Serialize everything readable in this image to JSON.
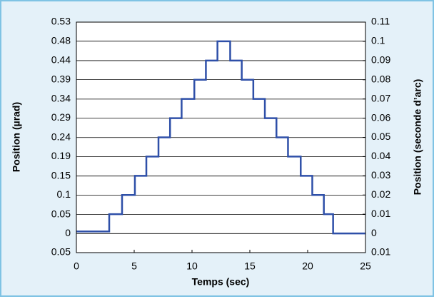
{
  "chart_data": {
    "type": "line",
    "xlabel": "Temps (sec)",
    "ylabel": "Position (µrad)",
    "y2label": "Position (seconde d’arc)",
    "xlim": [
      0,
      25
    ],
    "xticks": [
      0,
      5,
      10,
      15,
      20,
      25
    ],
    "ylim": [
      -0.048,
      0.533
    ],
    "yticks": [
      {
        "value": -0.048,
        "label": "0.05"
      },
      0,
      {
        "value": 0.048,
        "label": "0.05"
      },
      {
        "value": 0.097,
        "label": "0.1"
      },
      {
        "value": 0.145,
        "label": "0.15"
      },
      {
        "value": 0.194,
        "label": "0.19"
      },
      {
        "value": 0.242,
        "label": "0.24"
      },
      {
        "value": 0.291,
        "label": "0.29"
      },
      {
        "value": 0.339,
        "label": "0.34"
      },
      {
        "value": 0.388,
        "label": "0.39"
      },
      {
        "value": 0.436,
        "label": "0.44"
      },
      {
        "value": 0.485,
        "label": "0.48"
      },
      {
        "value": 0.533,
        "label": "0.53"
      }
    ],
    "y2lim": [
      -0.01,
      0.11
    ],
    "y2ticks": [
      {
        "value": -0.01,
        "label": "0.01"
      },
      0,
      0.01,
      0.02,
      0.03,
      0.04,
      0.05,
      0.06,
      0.07,
      0.08,
      0.09,
      0.1,
      0.11
    ],
    "grid": true,
    "series": [
      {
        "color": "#2e4fa8",
        "axis": "y2",
        "x": [
          0,
          2.84,
          2.84,
          3.95,
          3.95,
          5.06,
          5.06,
          6.05,
          6.05,
          7.1,
          7.1,
          8.1,
          8.1,
          9.1,
          9.1,
          10.2,
          10.2,
          11.2,
          11.2,
          12.2,
          12.2,
          13.3,
          13.3,
          14.3,
          14.3,
          15.3,
          15.3,
          16.3,
          16.3,
          17.3,
          17.3,
          18.3,
          18.3,
          19.4,
          19.4,
          20.4,
          20.4,
          21.4,
          21.4,
          22.2,
          22.2,
          25
        ],
        "values": [
          0.001,
          0.001,
          0.01,
          0.01,
          0.02,
          0.02,
          0.03,
          0.03,
          0.04,
          0.04,
          0.05,
          0.05,
          0.06,
          0.06,
          0.07,
          0.07,
          0.08,
          0.08,
          0.09,
          0.09,
          0.1,
          0.1,
          0.09,
          0.09,
          0.08,
          0.08,
          0.07,
          0.07,
          0.06,
          0.06,
          0.05,
          0.05,
          0.04,
          0.04,
          0.03,
          0.03,
          0.02,
          0.02,
          0.01,
          0.01,
          0,
          0
        ]
      }
    ]
  }
}
